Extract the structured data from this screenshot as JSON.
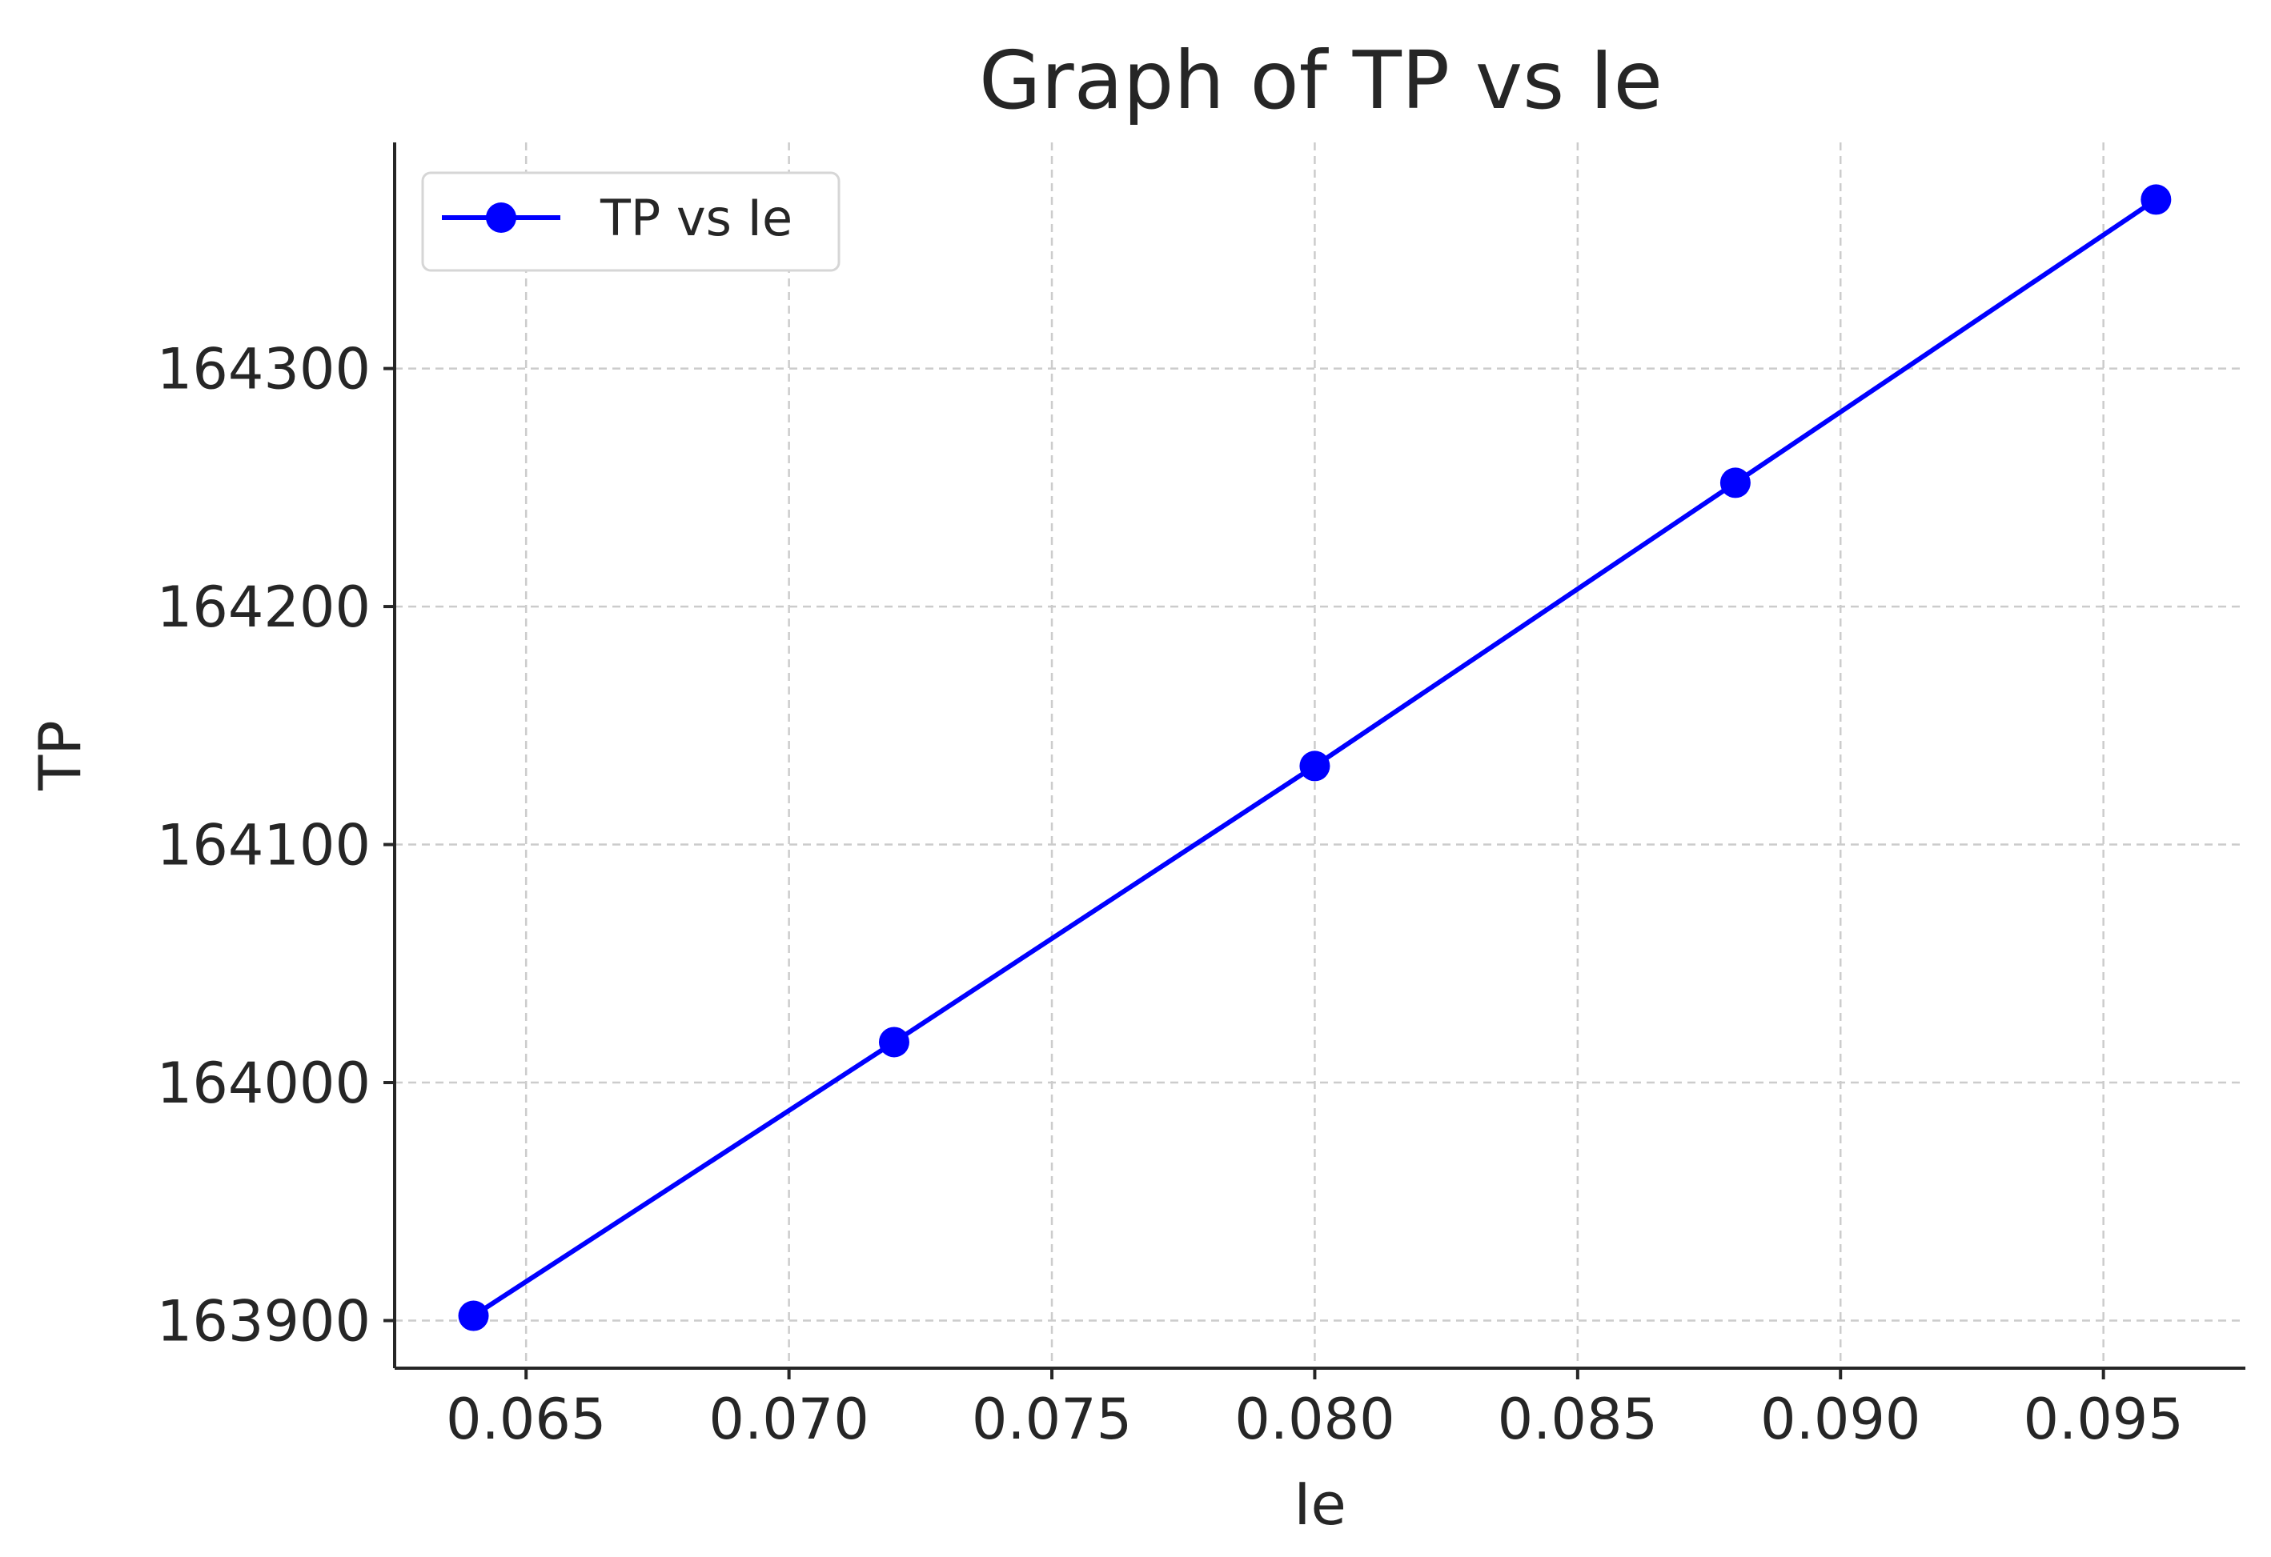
{
  "chart_data": {
    "type": "line",
    "title": "Graph of TP vs Ie",
    "xlabel": "Ie",
    "ylabel": "TP",
    "xlim": [
      0.0625,
      0.0977
    ],
    "ylim": [
      163880,
      164395
    ],
    "x_ticks": [
      0.065,
      0.07,
      0.075,
      0.08,
      0.085,
      0.09,
      0.095
    ],
    "x_tick_labels": [
      "0.065",
      "0.070",
      "0.075",
      "0.080",
      "0.085",
      "0.090",
      "0.095"
    ],
    "y_ticks": [
      163900,
      164000,
      164100,
      164200,
      164300
    ],
    "y_tick_labels": [
      "163900",
      "164000",
      "164100",
      "164200",
      "164300"
    ],
    "grid": true,
    "legend_position": "upper-left",
    "series": [
      {
        "name": "TP vs Ie",
        "color": "#0000ff",
        "marker": "circle",
        "x": [
          0.064,
          0.072,
          0.08,
          0.088,
          0.096
        ],
        "y": [
          163902,
          164017,
          164133,
          164252,
          164371
        ]
      }
    ]
  }
}
